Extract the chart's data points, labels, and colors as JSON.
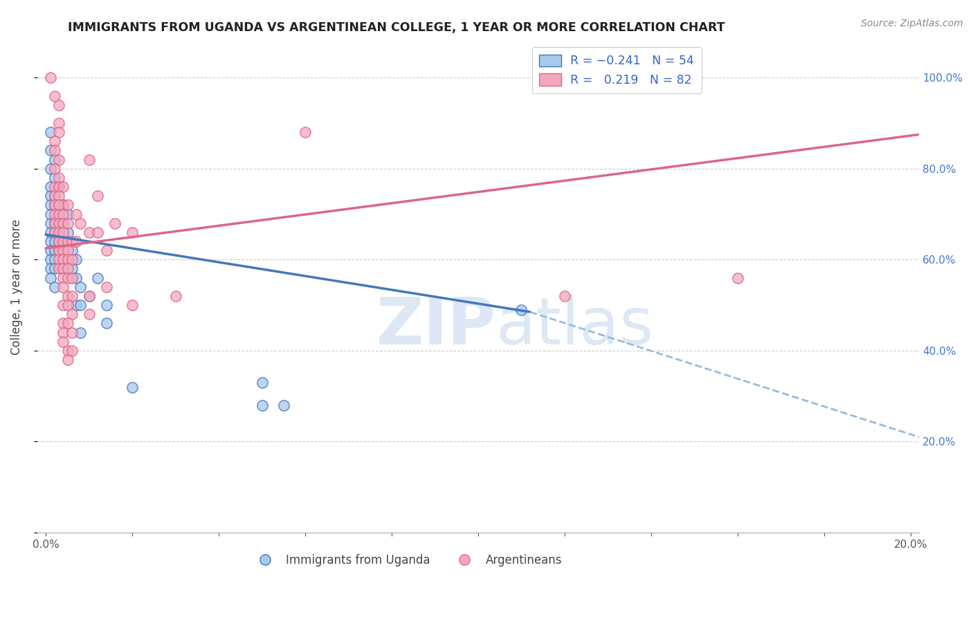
{
  "title": "IMMIGRANTS FROM UGANDA VS ARGENTINEAN COLLEGE, 1 YEAR OR MORE CORRELATION CHART",
  "source": "Source: ZipAtlas.com",
  "ylabel": "College, 1 year or more",
  "legend_labels": [
    "Immigrants from Uganda",
    "Argentineans"
  ],
  "color_blue": "#A8C8EE",
  "color_pink": "#F4A8BE",
  "line_blue": "#4477BB",
  "line_pink": "#DD6688",
  "line_dashed_color": "#99BBDD",
  "watermark_color": "#DDE8F4",
  "xlim": [
    -0.002,
    0.202
  ],
  "ylim": [
    0.0,
    1.08
  ],
  "x_ticks": [
    0.0,
    0.02,
    0.04,
    0.06,
    0.08,
    0.1,
    0.12,
    0.14,
    0.16,
    0.18,
    0.2
  ],
  "x_tick_labels": [
    "0.0%",
    "",
    "",
    "",
    "",
    "",
    "",
    "",
    "",
    "",
    "20.0%"
  ],
  "y_ticks": [
    0.0,
    0.2,
    0.4,
    0.6,
    0.8,
    1.0
  ],
  "y_tick_labels": [
    "",
    "20.0%",
    "40.0%",
    "60.0%",
    "80.0%",
    "100.0%"
  ],
  "right_y_tick_labels": [
    "",
    "20.0%",
    "40.0%",
    "60.0%",
    "80.0%",
    "100.0%"
  ],
  "blue_line": [
    [
      0.0,
      0.655
    ],
    [
      0.112,
      0.485
    ]
  ],
  "blue_line_dashed": [
    [
      0.112,
      0.485
    ],
    [
      0.202,
      0.21
    ]
  ],
  "pink_line": [
    [
      0.0,
      0.625
    ],
    [
      0.202,
      0.875
    ]
  ],
  "blue_points": [
    [
      0.001,
      0.88
    ],
    [
      0.001,
      0.84
    ],
    [
      0.001,
      0.8
    ],
    [
      0.001,
      0.76
    ],
    [
      0.001,
      0.74
    ],
    [
      0.001,
      0.72
    ],
    [
      0.001,
      0.7
    ],
    [
      0.001,
      0.68
    ],
    [
      0.001,
      0.66
    ],
    [
      0.001,
      0.64
    ],
    [
      0.001,
      0.62
    ],
    [
      0.001,
      0.6
    ],
    [
      0.001,
      0.58
    ],
    [
      0.001,
      0.56
    ],
    [
      0.002,
      0.82
    ],
    [
      0.002,
      0.78
    ],
    [
      0.002,
      0.74
    ],
    [
      0.002,
      0.72
    ],
    [
      0.002,
      0.68
    ],
    [
      0.002,
      0.66
    ],
    [
      0.002,
      0.64
    ],
    [
      0.002,
      0.62
    ],
    [
      0.002,
      0.6
    ],
    [
      0.002,
      0.58
    ],
    [
      0.002,
      0.54
    ],
    [
      0.003,
      0.76
    ],
    [
      0.003,
      0.72
    ],
    [
      0.003,
      0.68
    ],
    [
      0.003,
      0.66
    ],
    [
      0.003,
      0.64
    ],
    [
      0.003,
      0.62
    ],
    [
      0.004,
      0.72
    ],
    [
      0.004,
      0.68
    ],
    [
      0.004,
      0.64
    ],
    [
      0.005,
      0.7
    ],
    [
      0.005,
      0.66
    ],
    [
      0.006,
      0.62
    ],
    [
      0.006,
      0.58
    ],
    [
      0.007,
      0.6
    ],
    [
      0.007,
      0.56
    ],
    [
      0.007,
      0.5
    ],
    [
      0.008,
      0.54
    ],
    [
      0.008,
      0.5
    ],
    [
      0.008,
      0.44
    ],
    [
      0.01,
      0.52
    ],
    [
      0.012,
      0.56
    ],
    [
      0.014,
      0.5
    ],
    [
      0.014,
      0.46
    ],
    [
      0.02,
      0.32
    ],
    [
      0.05,
      0.33
    ],
    [
      0.055,
      0.28
    ],
    [
      0.11,
      0.49
    ],
    [
      0.05,
      0.28
    ]
  ],
  "pink_points": [
    [
      0.001,
      1.0
    ],
    [
      0.002,
      0.96
    ],
    [
      0.003,
      0.94
    ],
    [
      0.003,
      0.9
    ],
    [
      0.003,
      0.88
    ],
    [
      0.002,
      0.86
    ],
    [
      0.002,
      0.84
    ],
    [
      0.003,
      0.82
    ],
    [
      0.002,
      0.8
    ],
    [
      0.003,
      0.78
    ],
    [
      0.002,
      0.76
    ],
    [
      0.003,
      0.76
    ],
    [
      0.004,
      0.76
    ],
    [
      0.002,
      0.74
    ],
    [
      0.003,
      0.74
    ],
    [
      0.004,
      0.72
    ],
    [
      0.002,
      0.72
    ],
    [
      0.003,
      0.72
    ],
    [
      0.005,
      0.72
    ],
    [
      0.002,
      0.7
    ],
    [
      0.003,
      0.7
    ],
    [
      0.004,
      0.7
    ],
    [
      0.002,
      0.68
    ],
    [
      0.003,
      0.68
    ],
    [
      0.004,
      0.68
    ],
    [
      0.005,
      0.68
    ],
    [
      0.002,
      0.66
    ],
    [
      0.003,
      0.66
    ],
    [
      0.004,
      0.66
    ],
    [
      0.003,
      0.64
    ],
    [
      0.004,
      0.64
    ],
    [
      0.005,
      0.64
    ],
    [
      0.006,
      0.64
    ],
    [
      0.003,
      0.62
    ],
    [
      0.004,
      0.62
    ],
    [
      0.005,
      0.62
    ],
    [
      0.003,
      0.6
    ],
    [
      0.004,
      0.6
    ],
    [
      0.005,
      0.6
    ],
    [
      0.006,
      0.6
    ],
    [
      0.003,
      0.58
    ],
    [
      0.004,
      0.58
    ],
    [
      0.005,
      0.58
    ],
    [
      0.004,
      0.56
    ],
    [
      0.005,
      0.56
    ],
    [
      0.006,
      0.56
    ],
    [
      0.004,
      0.54
    ],
    [
      0.005,
      0.52
    ],
    [
      0.006,
      0.52
    ],
    [
      0.004,
      0.5
    ],
    [
      0.005,
      0.5
    ],
    [
      0.006,
      0.48
    ],
    [
      0.004,
      0.46
    ],
    [
      0.005,
      0.46
    ],
    [
      0.004,
      0.44
    ],
    [
      0.004,
      0.42
    ],
    [
      0.005,
      0.4
    ],
    [
      0.005,
      0.38
    ],
    [
      0.006,
      0.44
    ],
    [
      0.006,
      0.4
    ],
    [
      0.007,
      0.7
    ],
    [
      0.007,
      0.64
    ],
    [
      0.008,
      0.68
    ],
    [
      0.01,
      0.82
    ],
    [
      0.01,
      0.66
    ],
    [
      0.01,
      0.52
    ],
    [
      0.01,
      0.48
    ],
    [
      0.012,
      0.74
    ],
    [
      0.012,
      0.66
    ],
    [
      0.014,
      0.62
    ],
    [
      0.014,
      0.54
    ],
    [
      0.016,
      0.68
    ],
    [
      0.02,
      0.66
    ],
    [
      0.02,
      0.5
    ],
    [
      0.03,
      0.52
    ],
    [
      0.06,
      0.88
    ],
    [
      0.12,
      0.52
    ],
    [
      0.16,
      0.56
    ]
  ]
}
